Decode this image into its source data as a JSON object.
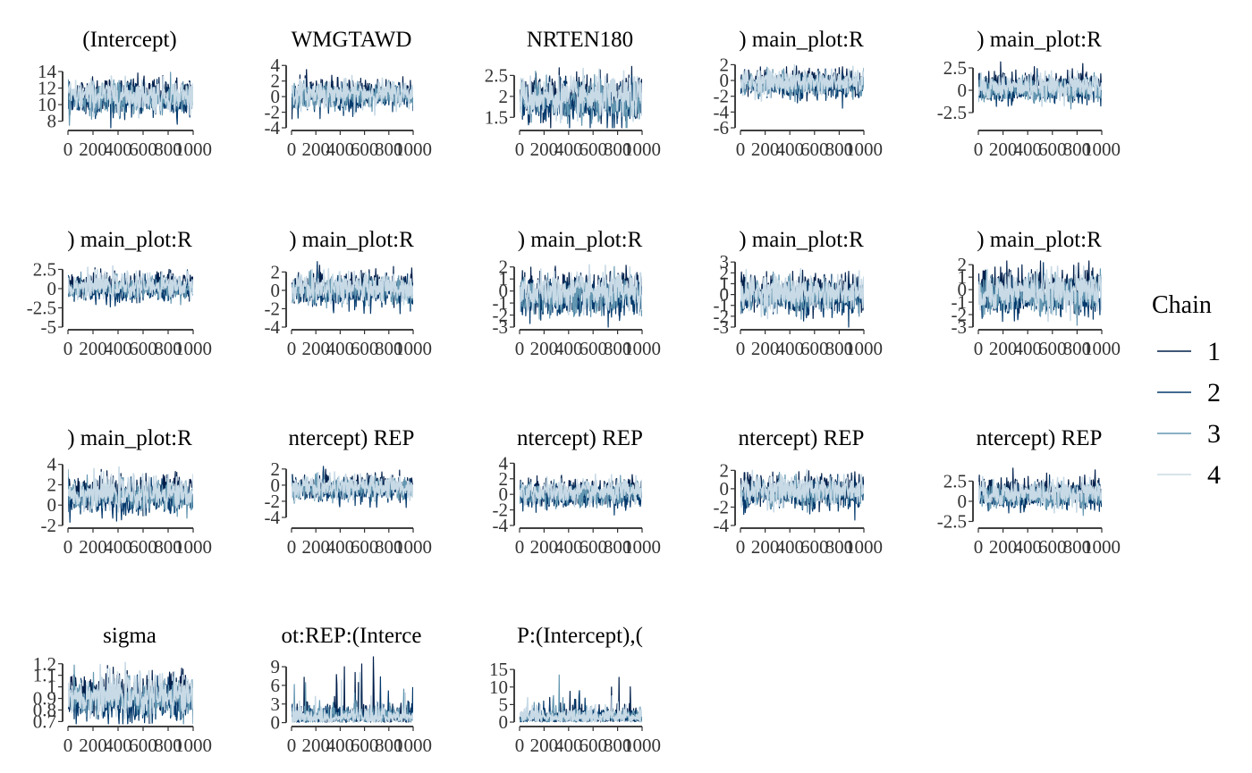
{
  "chart_data": {
    "type": "line",
    "x": {
      "min": 0,
      "max": 1000,
      "ticks": [
        0,
        200,
        400,
        600,
        800,
        1000
      ]
    },
    "legend": {
      "title": "Chain",
      "position": "right",
      "entries": [
        {
          "label": "1",
          "color": "#011f4b"
        },
        {
          "label": "2",
          "color": "#03396c"
        },
        {
          "label": "3",
          "color": "#6497b1"
        },
        {
          "label": "4",
          "color": "#c8dae6"
        }
      ]
    },
    "panels": [
      {
        "title": "(Intercept)",
        "ylim": [
          7.2,
          15.3
        ],
        "yticks": [
          8,
          10,
          12,
          14
        ],
        "center": 11,
        "spread": 1.2
      },
      {
        "title": "WMGTAWD",
        "ylim": [
          -4,
          4.6
        ],
        "yticks": [
          -4,
          -2,
          0,
          2,
          4
        ],
        "center": 0.3,
        "spread": 1.1
      },
      {
        "title": "NRTEN180",
        "ylim": [
          1.25,
          2.85
        ],
        "yticks": [
          1.5,
          2.0,
          2.5
        ],
        "center": 1.95,
        "spread": 0.3
      },
      {
        "title": ") main_plot:R",
        "ylim": [
          -6,
          2.5
        ],
        "yticks": [
          -6,
          -4,
          -2,
          0,
          2
        ],
        "center": -0.3,
        "spread": 1.0
      },
      {
        "title": ") main_plot:R",
        "ylim": [
          -4.2,
          3.3
        ],
        "yticks": [
          -2.5,
          0.0,
          2.5
        ],
        "center": 0.3,
        "spread": 0.9
      },
      {
        "title": ") main_plot:R",
        "ylim": [
          -5,
          3.6
        ],
        "yticks": [
          -5.0,
          -2.5,
          0.0,
          2.5
        ],
        "center": 0.3,
        "spread": 1.0
      },
      {
        "title": ") main_plot:R",
        "ylim": [
          -4,
          3.2
        ],
        "yticks": [
          -4,
          -2,
          0,
          2
        ],
        "center": 0.2,
        "spread": 1.0
      },
      {
        "title": ") main_plot:R",
        "ylim": [
          -3,
          2.5
        ],
        "yticks": [
          -3,
          -2,
          -1,
          0,
          1,
          2
        ],
        "center": -0.2,
        "spread": 1.0
      },
      {
        "title": ") main_plot:R",
        "ylim": [
          -3,
          3.1
        ],
        "yticks": [
          -3,
          -2,
          -1,
          0,
          1,
          2,
          3
        ],
        "center": 0.1,
        "spread": 1.0
      },
      {
        "title": ") main_plot:R",
        "ylim": [
          -3,
          2.3
        ],
        "yticks": [
          -3,
          -2,
          -1,
          0,
          1,
          2
        ],
        "center": -0.2,
        "spread": 1.0
      },
      {
        "title": ") main_plot:R",
        "ylim": [
          -2,
          4.5
        ],
        "yticks": [
          -2,
          0,
          2,
          4
        ],
        "center": 1.1,
        "spread": 1.0
      },
      {
        "title": "ntercept) REP",
        "ylim": [
          -5,
          3.2
        ],
        "yticks": [
          -4,
          -2,
          0,
          2
        ],
        "center": -0.3,
        "spread": 0.9
      },
      {
        "title": "ntercept) REP",
        "ylim": [
          -4,
          4.5
        ],
        "yticks": [
          -4,
          -2,
          0,
          2,
          4
        ],
        "center": 0.2,
        "spread": 1.0
      },
      {
        "title": "ntercept) REP",
        "ylim": [
          -4,
          3.2
        ],
        "yticks": [
          -4,
          -2,
          0,
          2
        ],
        "center": -0.2,
        "spread": 1.0
      },
      {
        "title": "ntercept) REP",
        "ylim": [
          -3,
          5.2
        ],
        "yticks": [
          -2.5,
          0.0,
          2.5
        ],
        "center": 0.9,
        "spread": 1.0
      },
      {
        "title": "sigma",
        "ylim": [
          0.68,
          1.26
        ],
        "yticks": [
          0.7,
          0.8,
          0.9,
          1.0,
          1.1,
          1.2
        ],
        "center": 0.92,
        "spread": 0.11
      },
      {
        "title": "ot:REP:(Interce",
        "ylim": [
          -0.2,
          10.6
        ],
        "yticks": [
          0,
          3,
          6,
          9
        ],
        "center": 1.2,
        "spread": 1.2,
        "positive": true
      },
      {
        "title": "P:(Intercept),(",
        "ylim": [
          -0.5,
          18.6
        ],
        "yticks": [
          0,
          5,
          10,
          15
        ],
        "center": 1.6,
        "spread": 1.8,
        "positive": true
      }
    ]
  }
}
